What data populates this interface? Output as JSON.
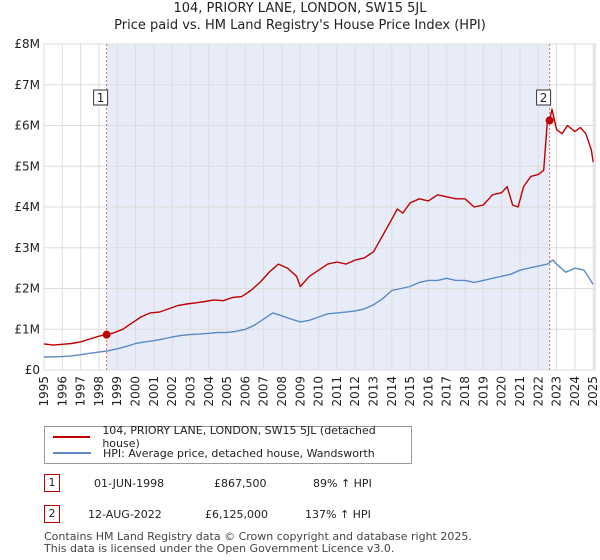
{
  "title_line1": "104, PRIORY LANE, LONDON, SW15 5JL",
  "title_line2": "Price paid vs. HM Land Registry's House Price Index (HPI)",
  "chart_data": {
    "type": "line",
    "title": "104, PRIORY LANE, LONDON, SW15 5JL — Price paid vs. HM Land Registry's House Price Index (HPI)",
    "xlim": [
      1995.0,
      2025.1
    ],
    "ylim": [
      0,
      8000000
    ],
    "y_ticks": [
      0,
      1000000,
      2000000,
      3000000,
      4000000,
      5000000,
      6000000,
      7000000,
      8000000
    ],
    "y_tick_labels": [
      "£0",
      "£1M",
      "£2M",
      "£3M",
      "£4M",
      "£5M",
      "£6M",
      "£7M",
      "£8M"
    ],
    "x_ticks": [
      1995,
      1996,
      1997,
      1998,
      1999,
      2000,
      2001,
      2002,
      2003,
      2004,
      2005,
      2006,
      2007,
      2008,
      2009,
      2010,
      2011,
      2012,
      2013,
      2014,
      2015,
      2016,
      2017,
      2018,
      2019,
      2020,
      2021,
      2022,
      2023,
      2024,
      2025
    ],
    "ownership_span": [
      1998.42,
      2022.62
    ],
    "series": [
      {
        "name": "104, PRIORY LANE, LONDON, SW15 5JL (detached house)",
        "color": "#c00000",
        "x": [
          1995.0,
          1995.5,
          1996.0,
          1996.5,
          1997.0,
          1997.5,
          1998.0,
          1998.42,
          1998.8,
          1999.3,
          1999.8,
          2000.3,
          2000.8,
          2001.3,
          2001.8,
          2002.3,
          2002.8,
          2003.3,
          2003.8,
          2004.3,
          2004.8,
          2005.3,
          2005.8,
          2006.3,
          2006.8,
          2007.3,
          2007.8,
          2008.3,
          2008.8,
          2009.0,
          2009.5,
          2010.0,
          2010.5,
          2011.0,
          2011.5,
          2012.0,
          2012.5,
          2013.0,
          2013.5,
          2014.0,
          2014.3,
          2014.6,
          2015.0,
          2015.5,
          2016.0,
          2016.5,
          2017.0,
          2017.5,
          2018.0,
          2018.5,
          2019.0,
          2019.5,
          2020.0,
          2020.3,
          2020.6,
          2020.9,
          2021.2,
          2021.6,
          2022.0,
          2022.3,
          2022.5,
          2022.62,
          2022.75,
          2022.85,
          2023.0,
          2023.3,
          2023.6,
          2024.0,
          2024.3,
          2024.6,
          2024.9,
          2025.0
        ],
        "values": [
          640000,
          610000,
          630000,
          650000,
          690000,
          760000,
          830000,
          867500,
          910000,
          1000000,
          1150000,
          1300000,
          1400000,
          1420000,
          1500000,
          1580000,
          1620000,
          1650000,
          1680000,
          1720000,
          1700000,
          1780000,
          1800000,
          1950000,
          2150000,
          2400000,
          2600000,
          2500000,
          2300000,
          2050000,
          2300000,
          2450000,
          2600000,
          2650000,
          2600000,
          2700000,
          2750000,
          2900000,
          3300000,
          3700000,
          3950000,
          3850000,
          4100000,
          4200000,
          4150000,
          4300000,
          4250000,
          4200000,
          4200000,
          4000000,
          4050000,
          4300000,
          4350000,
          4500000,
          4050000,
          4000000,
          4500000,
          4750000,
          4800000,
          4900000,
          6125000,
          6125000,
          6400000,
          6200000,
          5900000,
          5800000,
          6000000,
          5850000,
          5950000,
          5800000,
          5400000,
          5100000
        ]
      },
      {
        "name": "HPI: Average price, detached house, Wandsworth",
        "color": "#5b8ac6",
        "x": [
          1995.0,
          1995.5,
          1996.0,
          1996.5,
          1997.0,
          1997.5,
          1998.0,
          1998.5,
          1999.0,
          1999.5,
          2000.0,
          2000.5,
          2001.0,
          2001.5,
          2002.0,
          2002.5,
          2003.0,
          2003.5,
          2004.0,
          2004.5,
          2005.0,
          2005.5,
          2006.0,
          2006.5,
          2007.0,
          2007.5,
          2008.0,
          2008.5,
          2009.0,
          2009.5,
          2010.0,
          2010.5,
          2011.0,
          2011.5,
          2012.0,
          2012.5,
          2013.0,
          2013.5,
          2014.0,
          2014.5,
          2015.0,
          2015.5,
          2016.0,
          2016.5,
          2017.0,
          2017.5,
          2018.0,
          2018.5,
          2019.0,
          2019.5,
          2020.0,
          2020.5,
          2021.0,
          2021.5,
          2022.0,
          2022.5,
          2022.8,
          2023.0,
          2023.5,
          2024.0,
          2024.5,
          2025.0
        ],
        "values": [
          320000,
          325000,
          330000,
          345000,
          375000,
          410000,
          440000,
          470000,
          520000,
          580000,
          650000,
          690000,
          720000,
          760000,
          810000,
          850000,
          870000,
          880000,
          900000,
          920000,
          920000,
          950000,
          1000000,
          1100000,
          1250000,
          1400000,
          1330000,
          1250000,
          1180000,
          1220000,
          1300000,
          1380000,
          1400000,
          1420000,
          1450000,
          1500000,
          1600000,
          1750000,
          1950000,
          2000000,
          2050000,
          2150000,
          2200000,
          2200000,
          2250000,
          2200000,
          2200000,
          2150000,
          2200000,
          2250000,
          2300000,
          2350000,
          2450000,
          2500000,
          2550000,
          2600000,
          2700000,
          2600000,
          2400000,
          2500000,
          2450000,
          2100000
        ]
      }
    ],
    "markers": [
      {
        "label": "1",
        "x": 1998.42,
        "value": 867500
      },
      {
        "label": "2",
        "x": 2022.62,
        "value": 6125000
      }
    ]
  },
  "legend": {
    "property": "104, PRIORY LANE, LONDON, SW15 5JL (detached house)",
    "hpi": "HPI: Average price, detached house, Wandsworth",
    "property_color": "#c00000",
    "hpi_color": "#5b8ac6"
  },
  "transactions": [
    {
      "num": "1",
      "date": "01-JUN-1998",
      "price": "£867,500",
      "hpi": "89% ↑ HPI"
    },
    {
      "num": "2",
      "date": "12-AUG-2022",
      "price": "£6,125,000",
      "hpi": "137% ↑ HPI"
    }
  ],
  "footer_line1": "Contains HM Land Registry data © Crown copyright and database right 2025.",
  "footer_line2": "This data is licensed under the Open Government Licence v3.0."
}
